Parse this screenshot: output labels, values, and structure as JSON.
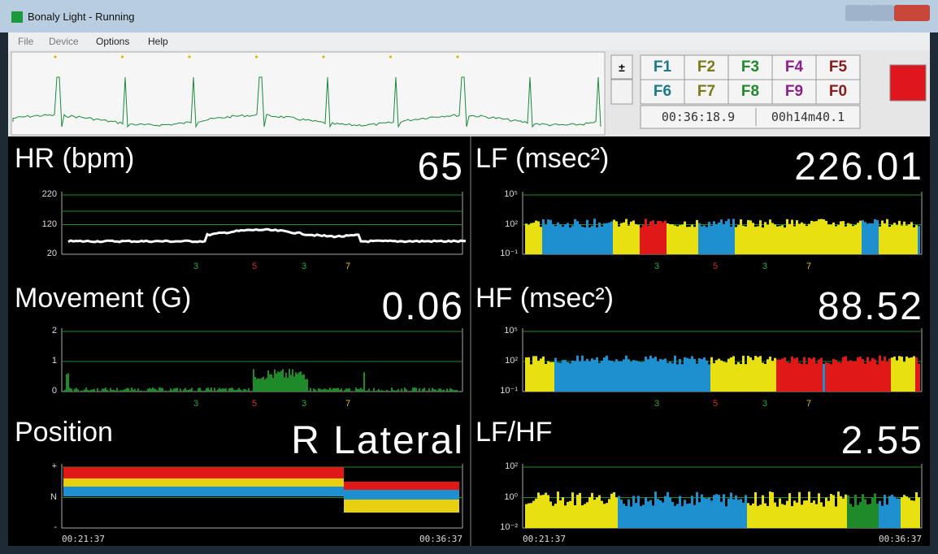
{
  "window": {
    "title": "Bonaly Light - Running"
  },
  "menu": [
    "File",
    "Device",
    "Options",
    "Help"
  ],
  "function_keys": [
    [
      "F1",
      "F2",
      "F3",
      "F4",
      "F5"
    ],
    [
      "F6",
      "F7",
      "F8",
      "F9",
      "F0"
    ]
  ],
  "clock": "00:36:18.9",
  "elapsed": "00h14m40.1",
  "panels": [
    {
      "label": "HR (bpm)",
      "value": "65",
      "yticks": [
        "220",
        "120",
        "20"
      ],
      "markers": [
        "3",
        "5",
        "3",
        "7"
      ]
    },
    {
      "label": "LF (msec²)",
      "value": "226.01",
      "yticks": [
        "10⁵",
        "10²",
        "10⁻¹"
      ],
      "markers": [
        "3",
        "5",
        "3",
        "7"
      ]
    },
    {
      "label": "Movement (G)",
      "value": "0.06",
      "yticks": [
        "2",
        "1",
        "0"
      ],
      "markers": [
        "3",
        "5",
        "3",
        "7"
      ]
    },
    {
      "label": "HF (msec²)",
      "value": "88.52",
      "yticks": [
        "10⁵",
        "10²",
        "10⁻¹"
      ],
      "markers": [
        "3",
        "5",
        "3",
        "7"
      ]
    },
    {
      "label": "Position",
      "value": "R Lateral",
      "yticks": [
        "+",
        "N",
        "-"
      ],
      "xlabels": [
        "00:21:37",
        "00:36:37"
      ]
    },
    {
      "label": "LF/HF",
      "value": "2.55",
      "yticks": [
        "10²",
        "10⁰",
        "10⁻²"
      ],
      "xlabels": [
        "00:21:37",
        "00:36:37"
      ]
    }
  ]
}
